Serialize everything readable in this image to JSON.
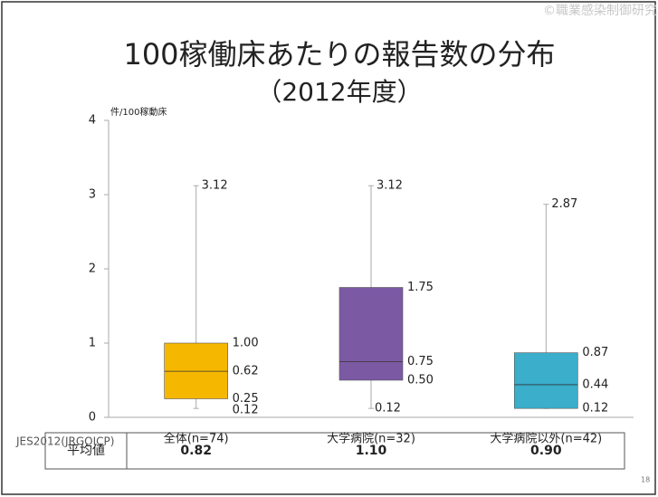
{
  "chart_data": {
    "type": "box",
    "title": "100稼働床あたりの報告数の分布",
    "subtitle": "（2012年度）",
    "ylabel": "件/100稼動床",
    "categories": [
      "全体(n=74)",
      "大学病院(n=32)",
      "大学病院以外(n=42)"
    ],
    "boxes": [
      {
        "color": "#f5b700",
        "min": 0.12,
        "q1": 0.25,
        "median": 0.62,
        "q3": 1.0,
        "max": 3.12,
        "value_labels": {
          "min": "0.12",
          "q1": "0.25",
          "median": "0.62",
          "q3": "1.00",
          "max": "3.12"
        }
      },
      {
        "color": "#7b59a3",
        "min": 0.12,
        "q1": 0.5,
        "median": 0.75,
        "q3": 1.75,
        "max": 3.12,
        "value_labels": {
          "min": "0.12",
          "q1": "0.50",
          "median": "0.75",
          "q3": "1.75",
          "max": "3.12"
        }
      },
      {
        "color": "#3aaecb",
        "min": 0.12,
        "q1": 0.12,
        "median": 0.44,
        "q3": 0.87,
        "max": 2.87,
        "value_labels": {
          "min": "0.12",
          "median": "0.44",
          "q3": "0.87",
          "max": "2.87"
        }
      }
    ],
    "ylim": [
      0,
      4
    ],
    "yticks": [
      0,
      1,
      2,
      3,
      4
    ],
    "grid": false
  },
  "source": "JES2012(JRGOICP)",
  "watermark": "©職業感染制御研究会",
  "page_number": "18",
  "table": {
    "header": "平均値",
    "values": [
      "0.82",
      "1.10",
      "0.90"
    ]
  }
}
